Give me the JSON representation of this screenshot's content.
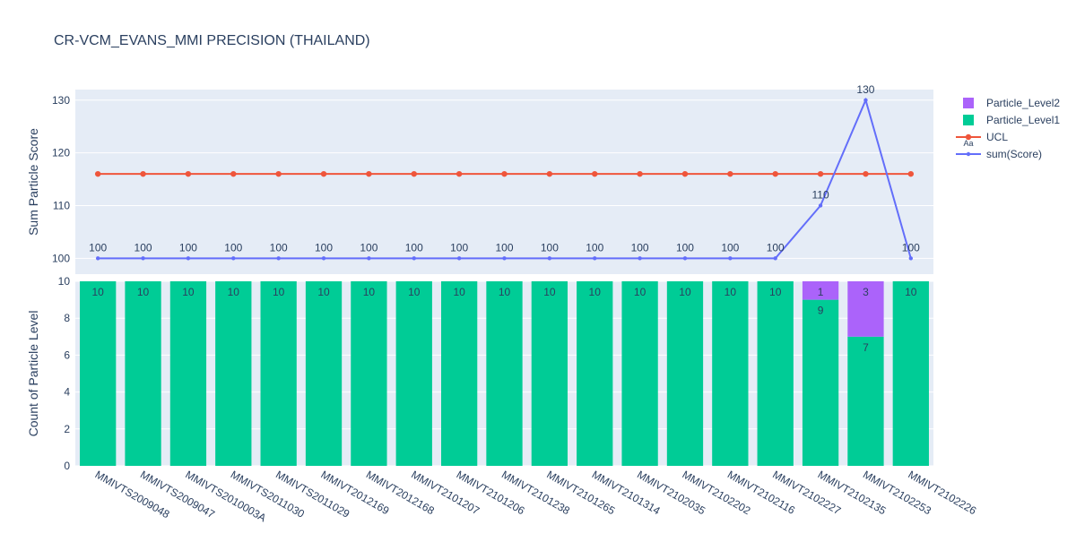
{
  "title": "CR-VCM_EVANS_MMI PRECISION (THAILAND)",
  "chart_data": [
    {
      "type": "line",
      "ylabel": "Sum Particle Score",
      "ylim": [
        97,
        132
      ],
      "yticks": [
        100,
        110,
        120,
        130
      ],
      "grid": true,
      "categories": [
        "MMIVTS2009048",
        "MMIVTS2009047",
        "MMIVTS2010003A",
        "MMIVTS2011030",
        "MMIVTS2011029",
        "MMIVT2012169",
        "MMIVT2012168",
        "MMIVT2101207",
        "MMIVT2101206",
        "MMIVT2101238",
        "MMIVT2101265",
        "MMIVT2101314",
        "MMIVT2102035",
        "MMIVT2102202",
        "MMIVT2102116",
        "MMIVT2102227",
        "MMIVT2102135",
        "MMIVT2102253",
        "MMIVT2102226"
      ],
      "series": [
        {
          "name": "UCL",
          "color": "#ef553b",
          "values": [
            116,
            116,
            116,
            116,
            116,
            116,
            116,
            116,
            116,
            116,
            116,
            116,
            116,
            116,
            116,
            116,
            116,
            116,
            116
          ]
        },
        {
          "name": "sum(Score)",
          "color": "#636efa",
          "values": [
            100,
            100,
            100,
            100,
            100,
            100,
            100,
            100,
            100,
            100,
            100,
            100,
            100,
            100,
            100,
            100,
            110,
            130,
            100
          ],
          "labels": [
            "100",
            "100",
            "100",
            "100",
            "100",
            "100",
            "100",
            "100",
            "100",
            "100",
            "100",
            "100",
            "100",
            "100",
            "100",
            "100",
            "110",
            "130",
            "100"
          ]
        }
      ]
    },
    {
      "type": "bar",
      "stacked": true,
      "ylabel": "Count of Particle Level",
      "ylim": [
        0,
        10
      ],
      "yticks": [
        0,
        2,
        4,
        6,
        8,
        10
      ],
      "grid": true,
      "categories": [
        "MMIVTS2009048",
        "MMIVTS2009047",
        "MMIVTS2010003A",
        "MMIVTS2011030",
        "MMIVTS2011029",
        "MMIVT2012169",
        "MMIVT2012168",
        "MMIVT2101207",
        "MMIVT2101206",
        "MMIVT2101238",
        "MMIVT2101265",
        "MMIVT2101314",
        "MMIVT2102035",
        "MMIVT2102202",
        "MMIVT2102116",
        "MMIVT2102227",
        "MMIVT2102135",
        "MMIVT2102253",
        "MMIVT2102226"
      ],
      "series": [
        {
          "name": "Particle_Level1",
          "color": "#00cc96",
          "values": [
            10,
            10,
            10,
            10,
            10,
            10,
            10,
            10,
            10,
            10,
            10,
            10,
            10,
            10,
            10,
            10,
            9,
            7,
            10
          ]
        },
        {
          "name": "Particle_Level2",
          "color": "#ab63fa",
          "values": [
            0,
            0,
            0,
            0,
            0,
            0,
            0,
            0,
            0,
            0,
            0,
            0,
            0,
            0,
            0,
            0,
            1,
            3,
            0
          ]
        }
      ]
    }
  ],
  "legend": {
    "placement": "top-right",
    "items": [
      {
        "name": "Particle_Level2",
        "kind": "bar",
        "color": "#ab63fa"
      },
      {
        "name": "Particle_Level1",
        "kind": "bar",
        "color": "#00cc96"
      },
      {
        "name": "UCL",
        "kind": "line",
        "color": "#ef553b"
      },
      {
        "name": "sum(Score)",
        "kind": "line",
        "color": "#636efa"
      }
    ],
    "annotation": "Aa"
  }
}
